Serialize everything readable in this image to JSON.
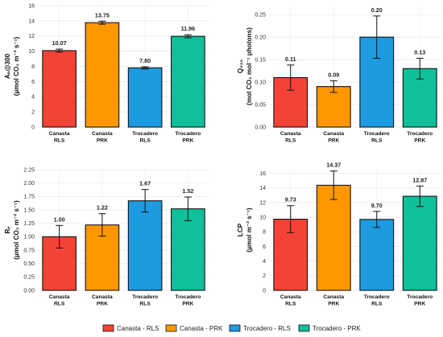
{
  "legend": {
    "position": "bottom",
    "entries": [
      {
        "label": "Canasta - RLS",
        "color": "#f44336"
      },
      {
        "label": "Canasta - PRK",
        "color": "#ff9800"
      },
      {
        "label": "Trocadero - RLS",
        "color": "#1e9be0"
      },
      {
        "label": "Trocadero - PRK",
        "color": "#10c09a"
      }
    ]
  },
  "chart_data": [
    {
      "type": "bar",
      "panel": "top-left",
      "ylabel_lines": [
        "Aₙ@300",
        "(µmol CO₂ m⁻² s⁻¹)"
      ],
      "categories": [
        [
          "Canasta",
          "RLS"
        ],
        [
          "Canasta",
          "PRK"
        ],
        [
          "Trocadero",
          "RLS"
        ],
        [
          "Trocadero",
          "PRK"
        ]
      ],
      "values": [
        10.07,
        13.75,
        7.8,
        11.96
      ],
      "value_labels": [
        "10.07",
        "13.75",
        "7.80",
        "11.96"
      ],
      "errors": [
        0.2,
        0.2,
        0.15,
        0.2
      ],
      "colors": [
        "#f44336",
        "#ff9800",
        "#1e9be0",
        "#10c09a"
      ],
      "ylim": [
        0,
        16
      ],
      "yticks": [
        "0",
        "2",
        "4",
        "6",
        "8",
        "10",
        "12",
        "14",
        "16"
      ],
      "grid": true
    },
    {
      "type": "bar",
      "panel": "top-right",
      "ylabel_lines": [
        "Q₀₀₀",
        "(mol CO₂ mol⁻¹ photons)"
      ],
      "categories": [
        [
          "Canasta",
          "RLS"
        ],
        [
          "Canasta",
          "PRK"
        ],
        [
          "Trocadero",
          "RLS"
        ],
        [
          "Trocadero",
          "PRK"
        ]
      ],
      "values": [
        0.11,
        0.09,
        0.2,
        0.13
      ],
      "value_labels": [
        "0.11",
        "0.09",
        "0.20",
        "0.13"
      ],
      "errors": [
        0.028,
        0.013,
        0.047,
        0.023
      ],
      "colors": [
        "#f44336",
        "#ff9800",
        "#1e9be0",
        "#10c09a"
      ],
      "ylim": [
        0,
        0.27
      ],
      "yticks": [
        "0.00",
        "0.05",
        "0.10",
        "0.15",
        "0.20",
        "0.25"
      ],
      "grid": true
    },
    {
      "type": "bar",
      "panel": "bottom-left",
      "ylabel_lines": [
        "Rₑ",
        "(µmol CO₂ m⁻² s⁻¹)"
      ],
      "categories": [
        [
          "Canasta",
          "RLS"
        ],
        [
          "Canasta",
          "PRK"
        ],
        [
          "Trocadero",
          "RLS"
        ],
        [
          "Trocadero",
          "PRK"
        ]
      ],
      "values": [
        1.0,
        1.22,
        1.67,
        1.52
      ],
      "value_labels": [
        "1.00",
        "1.22",
        "1.67",
        "1.52"
      ],
      "errors": [
        0.21,
        0.21,
        0.21,
        0.22
      ],
      "colors": [
        "#f44336",
        "#ff9800",
        "#1e9be0",
        "#10c09a"
      ],
      "ylim": [
        0,
        2.25
      ],
      "yticks": [
        "0.00",
        "0.25",
        "0.50",
        "0.75",
        "1.00",
        "1.25",
        "1.50",
        "1.75",
        "2.00",
        "2.25"
      ],
      "grid": true
    },
    {
      "type": "bar",
      "panel": "bottom-right",
      "ylabel_lines": [
        "LCP",
        "(µmol m⁻² s⁻¹)"
      ],
      "categories": [
        [
          "Canasta",
          "RLS"
        ],
        [
          "Canasta",
          "PRK"
        ],
        [
          "Trocadero",
          "RLS"
        ],
        [
          "Trocadero",
          "PRK"
        ]
      ],
      "values": [
        9.73,
        14.37,
        9.7,
        12.87
      ],
      "value_labels": [
        "9.73",
        "14.37",
        "9.70",
        "12.87"
      ],
      "errors": [
        1.85,
        1.95,
        1.1,
        1.4
      ],
      "colors": [
        "#f44336",
        "#ff9800",
        "#1e9be0",
        "#10c09a"
      ],
      "ylim": [
        0,
        16.5
      ],
      "yticks": [
        "0",
        "2",
        "4",
        "6",
        "8",
        "10",
        "12",
        "14",
        "16"
      ],
      "grid": true
    }
  ]
}
